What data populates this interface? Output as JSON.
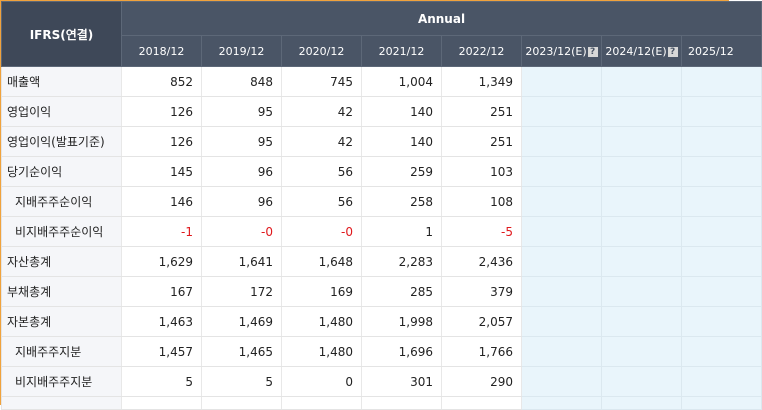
{
  "header": {
    "corner": "IFRS(연결)",
    "group": "Annual",
    "years": [
      "2018/12",
      "2019/12",
      "2020/12",
      "2021/12",
      "2022/12"
    ],
    "estimates": [
      "2023/12(E)",
      "2024/12(E)",
      "2025/12"
    ],
    "help_glyph": "?"
  },
  "rows": [
    {
      "label": "매출액",
      "values": [
        "852",
        "848",
        "745",
        "1,004",
        "1,349"
      ]
    },
    {
      "label": "영업이익",
      "values": [
        "126",
        "95",
        "42",
        "140",
        "251"
      ]
    },
    {
      "label": "영업이익(발표기준)",
      "values": [
        "126",
        "95",
        "42",
        "140",
        "251"
      ]
    },
    {
      "label": "당기순이익",
      "values": [
        "145",
        "96",
        "56",
        "259",
        "103"
      ]
    },
    {
      "label": "지배주주순이익",
      "values": [
        "146",
        "96",
        "56",
        "258",
        "108"
      ]
    },
    {
      "label": "비지배주주순이익",
      "values": [
        "-1",
        "-0",
        "-0",
        "1",
        "-5"
      ]
    },
    {
      "label": "자산총계",
      "values": [
        "1,629",
        "1,641",
        "1,648",
        "2,283",
        "2,436"
      ]
    },
    {
      "label": "부채총계",
      "values": [
        "167",
        "172",
        "169",
        "285",
        "379"
      ]
    },
    {
      "label": "자본총계",
      "values": [
        "1,463",
        "1,469",
        "1,480",
        "1,998",
        "2,057"
      ]
    },
    {
      "label": "지배주주지분",
      "values": [
        "1,457",
        "1,465",
        "1,480",
        "1,696",
        "1,766"
      ]
    },
    {
      "label": "비지배주주지분",
      "values": [
        "5",
        "5",
        "0",
        "301",
        "290"
      ]
    }
  ],
  "colors": {
    "header_bg": "#4a5566",
    "label_bg": "#f5f6f9",
    "estimate_bg": "#e9f5fb",
    "negative": "#e0181c",
    "frame_border": "#f0a23c"
  }
}
